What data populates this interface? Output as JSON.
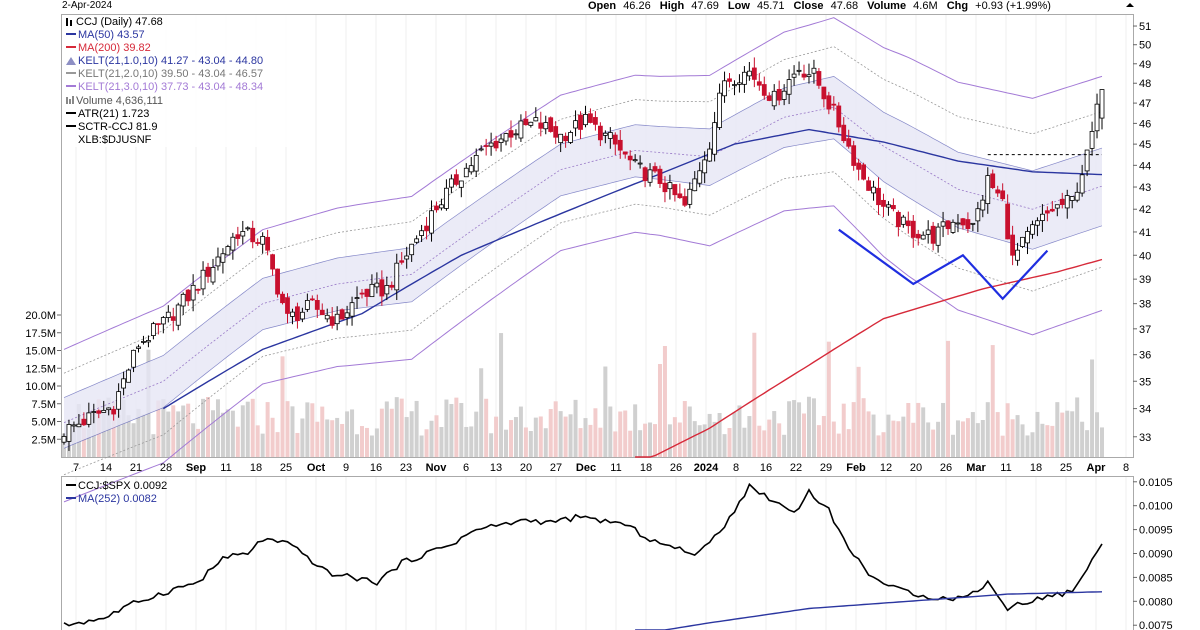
{
  "header": {
    "date": "2-Apr-2024",
    "open_label": "Open",
    "open": "46.26",
    "high_label": "High",
    "high": "47.69",
    "low_label": "Low",
    "low": "45.71",
    "close_label": "Close",
    "close": "47.68",
    "volume_label": "Volume",
    "volume": "4.6M",
    "chg_label": "Chg",
    "chg": "+0.93 (+1.99%)"
  },
  "legend": {
    "symbol": "CCJ (Daily) 47.68",
    "ma50": "MA(50) 43.57",
    "ma200": "MA(200) 39.82",
    "kelt1": "KELT(21,1.0,10) 41.27 - 43.04 - 44.80",
    "kelt2": "KELT(21,2.0,10) 39.50 - 43.04 - 46.57",
    "kelt3": "KELT(21,3.0,10) 37.73 - 43.04 - 48.34",
    "volume": "Volume 4,636,111",
    "atr": "ATR(21) 1.723",
    "sctr": "SCTR-CCJ 81.9",
    "xlb": "XLB:$DJUSNF"
  },
  "lower_legend": {
    "ratio": "CCJ:$SPX 0.0092",
    "ma252": "MA(252) 0.0082"
  },
  "colors": {
    "up": "#000000",
    "down": "#c8102e",
    "ma50": "#2b36a0",
    "ma200": "#d62a3a",
    "kelt1": "#3b3fa6",
    "kelt2": "#999999",
    "kelt3": "#a37ad6",
    "pattern": "#1f2ee0",
    "band_fill": "#e6e6f5",
    "vol_up": "#d0d0d0",
    "vol_down": "#f2cccc"
  },
  "chart_data": [
    {
      "type": "candlestick",
      "title": "CCJ (Daily) 47.68",
      "ylim": [
        32.3,
        51.6
      ],
      "y_ticks": [
        33,
        34,
        35,
        36,
        37,
        38,
        39,
        40,
        41,
        42,
        43,
        44,
        45,
        46,
        47,
        48,
        49,
        50,
        51
      ],
      "x_tick_labels": [
        "7",
        "14",
        "21",
        "28",
        "Sep",
        "11",
        "18",
        "25",
        "Oct",
        "9",
        "16",
        "23",
        "Nov",
        "6",
        "13",
        "20",
        "27",
        "Dec",
        "11",
        "18",
        "26",
        "2024",
        "8",
        "16",
        "22",
        "29",
        "Feb",
        "12",
        "20",
        "26",
        "Mar",
        "11",
        "18",
        "25",
        "Apr",
        "8"
      ],
      "close_anchors": [
        [
          0,
          33.2
        ],
        [
          10,
          34.1
        ],
        [
          15,
          36.4
        ],
        [
          20,
          37.2
        ],
        [
          25,
          38.3
        ],
        [
          30,
          39.6
        ],
        [
          35,
          41.0
        ],
        [
          40,
          40.6
        ],
        [
          45,
          37.4
        ],
        [
          50,
          37.9
        ],
        [
          55,
          37.3
        ],
        [
          60,
          38.4
        ],
        [
          65,
          38.6
        ],
        [
          70,
          40.4
        ],
        [
          75,
          42.1
        ],
        [
          80,
          43.6
        ],
        [
          85,
          44.8
        ],
        [
          90,
          45.6
        ],
        [
          95,
          46.0
        ],
        [
          100,
          45.4
        ],
        [
          105,
          46.1
        ],
        [
          110,
          45.2
        ],
        [
          115,
          43.9
        ],
        [
          120,
          43.3
        ],
        [
          125,
          42.1
        ],
        [
          130,
          45.1
        ],
        [
          133,
          48.2
        ],
        [
          138,
          48.6
        ],
        [
          143,
          47.2
        ],
        [
          148,
          48.8
        ],
        [
          151,
          48.4
        ],
        [
          155,
          46.5
        ],
        [
          160,
          43.8
        ],
        [
          165,
          42.1
        ],
        [
          170,
          41.1
        ],
        [
          175,
          40.8
        ],
        [
          180,
          41.6
        ],
        [
          183,
          41.2
        ],
        [
          186,
          43.3
        ],
        [
          189,
          42.3
        ],
        [
          191,
          39.8
        ],
        [
          195,
          41.1
        ],
        [
          199,
          42.0
        ],
        [
          203,
          42.4
        ],
        [
          206,
          44.4
        ],
        [
          208,
          46.6
        ],
        [
          209,
          47.68
        ]
      ],
      "volume_ylim_M": [
        0,
        20
      ],
      "volume_ticks": [
        "2.5M",
        "5.0M",
        "7.5M",
        "10.0M",
        "12.5M",
        "15.0M",
        "17.5M",
        "20.0M"
      ],
      "ma50_anchors": [
        [
          20,
          34.0
        ],
        [
          40,
          36.2
        ],
        [
          60,
          37.6
        ],
        [
          80,
          40.0
        ],
        [
          100,
          41.8
        ],
        [
          120,
          43.6
        ],
        [
          135,
          45.0
        ],
        [
          150,
          45.7
        ],
        [
          165,
          45.1
        ],
        [
          180,
          44.2
        ],
        [
          195,
          43.7
        ],
        [
          209,
          43.57
        ]
      ],
      "ma200_anchors": [
        [
          115,
          32.0
        ],
        [
          130,
          33.3
        ],
        [
          150,
          35.6
        ],
        [
          165,
          37.4
        ],
        [
          185,
          38.6
        ],
        [
          200,
          39.3
        ],
        [
          209,
          39.82
        ]
      ],
      "keltner_mid_anchors": [
        [
          0,
          33.5
        ],
        [
          20,
          35.0
        ],
        [
          40,
          38.0
        ],
        [
          55,
          38.8
        ],
        [
          70,
          39.2
        ],
        [
          85,
          41.5
        ],
        [
          100,
          43.8
        ],
        [
          115,
          44.7
        ],
        [
          130,
          44.4
        ],
        [
          145,
          46.3
        ],
        [
          155,
          46.8
        ],
        [
          165,
          44.9
        ],
        [
          180,
          42.9
        ],
        [
          195,
          42.0
        ],
        [
          209,
          43.04
        ]
      ],
      "keltner_atr_anchors": [
        [
          0,
          0.9
        ],
        [
          60,
          1.1
        ],
        [
          120,
          1.25
        ],
        [
          150,
          1.5
        ],
        [
          170,
          1.7
        ],
        [
          209,
          1.77
        ]
      ],
      "patterns": [
        {
          "name": "inverse-head-and-shoulders",
          "points": [
            [
              156,
              41.1
            ],
            [
              171,
              38.8
            ],
            [
              181,
              40.0
            ],
            [
              189,
              38.2
            ],
            [
              198,
              40.2
            ]
          ]
        }
      ],
      "resistance_line": {
        "from": 186,
        "to": 209,
        "value": 44.5
      }
    },
    {
      "type": "line",
      "title": "CCJ:$SPX 0.0092",
      "ylim": [
        0.0074,
        0.0106
      ],
      "y_ticks": [
        "0.0075",
        "0.0080",
        "0.0085",
        "0.0090",
        "0.0095",
        "0.0100",
        "0.0105"
      ],
      "series": [
        {
          "name": "CCJ:$SPX",
          "points": [
            [
              0,
              0.0075
            ],
            [
              8,
              0.00765
            ],
            [
              15,
              0.008
            ],
            [
              22,
              0.00825
            ],
            [
              27,
              0.0084
            ],
            [
              32,
              0.0089
            ],
            [
              37,
              0.009
            ],
            [
              40,
              0.0093
            ],
            [
              45,
              0.0092
            ],
            [
              48,
              0.009
            ],
            [
              53,
              0.0086
            ],
            [
              58,
              0.0085
            ],
            [
              63,
              0.0084
            ],
            [
              68,
              0.0088
            ],
            [
              73,
              0.009
            ],
            [
              78,
              0.0092
            ],
            [
              83,
              0.0095
            ],
            [
              88,
              0.0096
            ],
            [
              93,
              0.0097
            ],
            [
              98,
              0.00965
            ],
            [
              103,
              0.00975
            ],
            [
              108,
              0.0097
            ],
            [
              113,
              0.0096
            ],
            [
              118,
              0.0093
            ],
            [
              123,
              0.0091
            ],
            [
              128,
              0.009
            ],
            [
              133,
              0.0096
            ],
            [
              138,
              0.0104
            ],
            [
              143,
              0.0101
            ],
            [
              147,
              0.00985
            ],
            [
              150,
              0.0103
            ],
            [
              154,
              0.0099
            ],
            [
              158,
              0.0091
            ],
            [
              162,
              0.0086
            ],
            [
              166,
              0.0083
            ],
            [
              170,
              0.0082
            ],
            [
              174,
              0.0081
            ],
            [
              178,
              0.00805
            ],
            [
              182,
              0.0081
            ],
            [
              186,
              0.0084
            ],
            [
              190,
              0.00785
            ],
            [
              194,
              0.008
            ],
            [
              198,
              0.0081
            ],
            [
              203,
              0.0082
            ],
            [
              206,
              0.0087
            ],
            [
              209,
              0.0092
            ]
          ]
        },
        {
          "name": "MA(252)",
          "points": [
            [
              115,
              0.0073
            ],
            [
              130,
              0.00755
            ],
            [
              150,
              0.00785
            ],
            [
              170,
              0.008
            ],
            [
              190,
              0.00815
            ],
            [
              209,
              0.0082
            ]
          ]
        }
      ]
    }
  ]
}
